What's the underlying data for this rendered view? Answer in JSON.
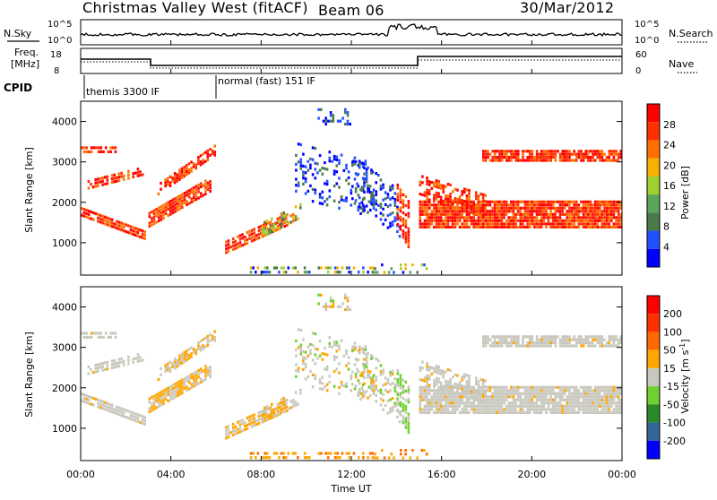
{
  "header": {
    "station": "Christmas Valley West (fitACF)",
    "beam": "Beam 06",
    "date": "30/Mar/2012"
  },
  "summary": {
    "nsky_label": "N.Sky",
    "nsearch_label": "N.Search",
    "freq_label_1": "Freq.",
    "freq_label_2": "[MHz]",
    "nave_label": "Nave",
    "cpid_label": "CPID",
    "nsky_ticks": [
      "10^5",
      "10^0"
    ],
    "nsearch_ticks": [
      "10^5",
      "10^0"
    ],
    "freq_ticks": [
      "18",
      "8"
    ],
    "nave_ticks": [
      "60",
      "0"
    ],
    "cpid_modes": [
      {
        "name": "themis 3300 IF",
        "start_hour": 0.4
      },
      {
        "name": "normal (fast) 151 IF",
        "start_hour": 6.0
      }
    ]
  },
  "chart_data": [
    {
      "type": "heatmap",
      "name": "power",
      "ylabel": "Slant Range [km]",
      "ylim": [
        200,
        4500
      ],
      "yticks": [
        "1000",
        "2000",
        "3000",
        "4000"
      ],
      "colorbar_label": "Power [dB]",
      "colorbar_ticks": [
        "28",
        "24",
        "20",
        "16",
        "12",
        "8",
        "4"
      ],
      "colors": [
        "#0000ff",
        "#2050ff",
        "#4a7a4a",
        "#5aa55a",
        "#a0d030",
        "#f5b000",
        "#ff7000",
        "#ff3000",
        "#ff0000"
      ]
    },
    {
      "type": "heatmap",
      "name": "velocity",
      "ylabel": "Slant Range [km]",
      "ylim": [
        200,
        4500
      ],
      "yticks": [
        "1000",
        "2000",
        "3000",
        "4000"
      ],
      "colorbar_label": "Velocity [m s",
      "colorbar_label_sup": "-1",
      "colorbar_label_end": "]",
      "colorbar_ticks": [
        "200",
        "100",
        "50",
        "15",
        "-15",
        "-50",
        "-100",
        "-200"
      ],
      "colors": [
        "#0000ff",
        "#336699",
        "#2a8a2a",
        "#70d030",
        "#c8c8be",
        "#ffa500",
        "#ff6a00",
        "#ff3000",
        "#ff0000"
      ]
    }
  ],
  "xaxis": {
    "xlabel": "Time UT",
    "xticks": [
      "00:00",
      "04:00",
      "08:00",
      "12:00",
      "16:00",
      "20:00",
      "00:00"
    ],
    "xlim_hours": [
      0,
      24
    ]
  }
}
